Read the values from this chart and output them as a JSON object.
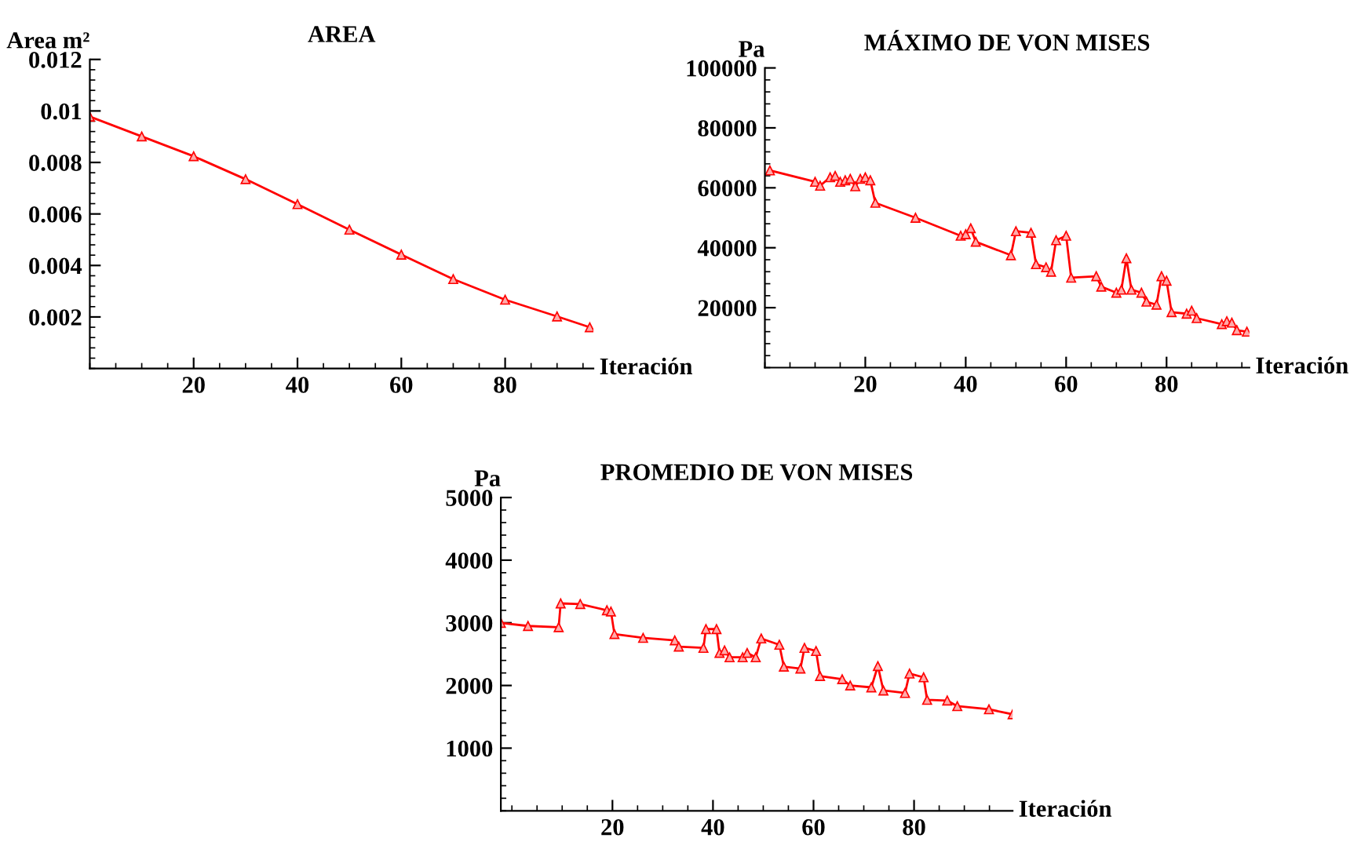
{
  "chart_data": [
    {
      "type": "line",
      "title": "AREA",
      "ylabel": "Area m²",
      "xlabel": "Iteración",
      "xlim": [
        0,
        97
      ],
      "xticks": [
        20,
        40,
        60,
        80
      ],
      "ylim": [
        0,
        0.012
      ],
      "yticks": [
        0.002,
        0.004,
        0.006,
        0.008,
        0.01,
        0.012
      ],
      "marker": "triangle",
      "grid": false,
      "series": [
        {
          "color": "#ff0000",
          "x": [
            0,
            10,
            20,
            30,
            40,
            50,
            60,
            70,
            80,
            90,
            96.3
          ],
          "values": [
            0.00978,
            0.00901,
            0.00824,
            0.00735,
            0.00638,
            0.00539,
            0.00442,
            0.00347,
            0.00267,
            0.00202,
            0.0016
          ]
        }
      ]
    },
    {
      "type": "line",
      "title": "MÁXIMO DE VON MISES",
      "ylabel": "Pa",
      "xlabel": "Iteración",
      "xlim": [
        0,
        96.5
      ],
      "xticks": [
        20,
        40,
        60,
        80
      ],
      "ylim": [
        0,
        100000
      ],
      "yticks": [
        20000,
        40000,
        60000,
        80000,
        100000
      ],
      "marker": "triangle",
      "grid": false,
      "series": [
        {
          "color": "#ff0000",
          "x": [
            1,
            10,
            11,
            13,
            14,
            15,
            16,
            17,
            18,
            19,
            20,
            21,
            22,
            30,
            39,
            40,
            41,
            42,
            49,
            50,
            53,
            54,
            56,
            57,
            58,
            60,
            61,
            66,
            67,
            70,
            71,
            72,
            73,
            75,
            76,
            78,
            79,
            80,
            81,
            84,
            85,
            86,
            91,
            92,
            93,
            94,
            96
          ],
          "values": [
            65800,
            62000,
            60700,
            63500,
            64000,
            62000,
            62500,
            63000,
            60500,
            63000,
            63500,
            62500,
            55000,
            50000,
            44000,
            44500,
            46500,
            42000,
            37500,
            45500,
            45000,
            34500,
            33500,
            32000,
            42500,
            44000,
            30000,
            30500,
            27000,
            25000,
            26000,
            36500,
            26000,
            25000,
            22000,
            21000,
            30500,
            29000,
            18500,
            18000,
            19000,
            16500,
            14500,
            15500,
            15000,
            12500,
            12000
          ]
        }
      ]
    },
    {
      "type": "line",
      "title": "PROMEDIO DE VON MISES",
      "ylabel": "Pa",
      "xlabel": "Iteración",
      "xlim": [
        -2.2,
        99.6
      ],
      "xticks": [
        20,
        40,
        60,
        80
      ],
      "ylim": [
        0,
        5000
      ],
      "yticks": [
        1000,
        2000,
        3000,
        4000,
        5000
      ],
      "marker": "triangle",
      "grid": false,
      "series": [
        {
          "color": "#ff0000",
          "x": [
            -2.2,
            3.2,
            9.3,
            9.7,
            13.6,
            18.9,
            19.7,
            20.4,
            26.1,
            32.4,
            33.2,
            38.1,
            38.6,
            40.7,
            41.3,
            42.3,
            43.3,
            45.9,
            46.8,
            48.5,
            49.6,
            53.2,
            54.1,
            57.4,
            58.2,
            60.5,
            61.3,
            65.7,
            67.3,
            71.5,
            72.8,
            73.9,
            78.2,
            79.1,
            81.9,
            82.6,
            86.6,
            88.6,
            94.9,
            99.6
          ],
          "values": [
            3000,
            2950,
            2930,
            3310,
            3300,
            3200,
            3180,
            2820,
            2760,
            2720,
            2620,
            2600,
            2900,
            2900,
            2520,
            2560,
            2450,
            2450,
            2520,
            2450,
            2750,
            2650,
            2300,
            2270,
            2600,
            2550,
            2150,
            2100,
            2000,
            1970,
            2310,
            1920,
            1880,
            2190,
            2130,
            1770,
            1760,
            1670,
            1620,
            1540
          ]
        }
      ]
    }
  ]
}
